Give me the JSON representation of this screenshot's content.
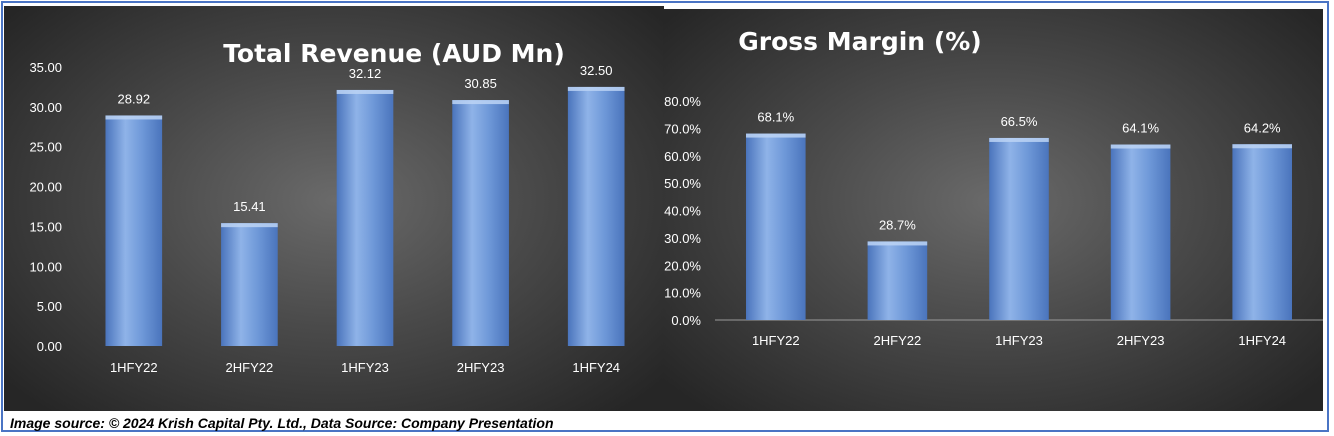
{
  "footer": {
    "source_text": "Image source: © 2024 Krish Capital Pty. Ltd., Data Source: Company Presentation"
  },
  "colors": {
    "bar_light": "#8fb3e8",
    "bar_mid": "#6e98d8",
    "bar_dark": "#4a74bc",
    "text": "#ffffff",
    "frame": "#4a74c4"
  },
  "chart_data": [
    {
      "type": "bar",
      "title": "Total Revenue (AUD Mn)",
      "categories": [
        "1HFY22",
        "2HFY22",
        "1HFY23",
        "2HFY23",
        "1HFY24"
      ],
      "values": [
        28.92,
        15.41,
        32.12,
        30.85,
        32.5
      ],
      "data_labels": [
        "28.92",
        "15.41",
        "32.12",
        "30.85",
        "32.50"
      ],
      "ylim": [
        0,
        35
      ],
      "yticks": [
        0,
        5,
        10,
        15,
        20,
        25,
        30,
        35
      ],
      "ytick_labels": [
        "0.00",
        "5.00",
        "10.00",
        "15.00",
        "20.00",
        "25.00",
        "30.00",
        "35.00"
      ],
      "grid": false,
      "xlabel": "",
      "ylabel": ""
    },
    {
      "type": "bar",
      "title": "Gross Margin (%)",
      "categories": [
        "1HFY22",
        "2HFY22",
        "1HFY23",
        "2HFY23",
        "1HFY24"
      ],
      "values": [
        68.1,
        28.7,
        66.5,
        64.1,
        64.2
      ],
      "data_labels": [
        "68.1%",
        "28.7%",
        "66.5%",
        "64.1%",
        "64.2%"
      ],
      "ylim": [
        0,
        80
      ],
      "yticks": [
        0,
        10,
        20,
        30,
        40,
        50,
        60,
        70,
        80
      ],
      "ytick_labels": [
        "0.0%",
        "10.0%",
        "20.0%",
        "30.0%",
        "40.0%",
        "50.0%",
        "60.0%",
        "70.0%",
        "80.0%"
      ],
      "grid": false,
      "xlabel": "",
      "ylabel": ""
    }
  ]
}
